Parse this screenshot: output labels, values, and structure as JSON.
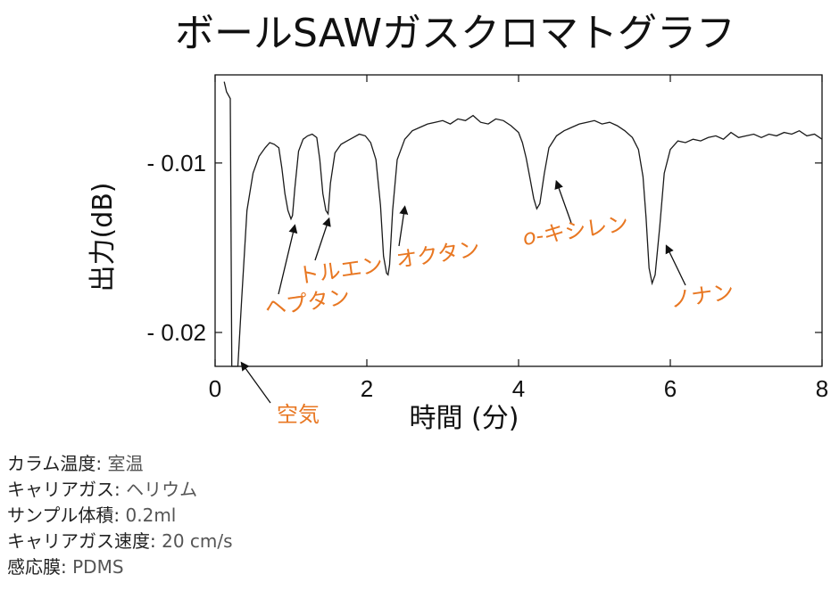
{
  "chart_data": {
    "type": "line",
    "title": "ボールSAWガスクロマトグラフ",
    "xlabel": "時間 (分)",
    "ylabel": "出力(dB)",
    "xlim": [
      0,
      8
    ],
    "ylim": [
      -0.022,
      -0.0048
    ],
    "xticks": [
      "0",
      "2",
      "4",
      "6",
      "8"
    ],
    "yticks": [
      {
        "value": -0.01,
        "label": "- 0.01"
      },
      {
        "value": -0.02,
        "label": "- 0.02"
      }
    ],
    "grid": false,
    "legend": "none",
    "line_color": "#1a1a1a",
    "annotation_color": "#e87722",
    "series": [
      {
        "x": [
          0.12,
          0.15,
          0.2,
          0.22,
          0.25,
          0.28,
          0.3,
          0.35,
          0.42,
          0.5,
          0.58,
          0.66,
          0.72,
          0.78,
          0.84,
          0.88,
          0.92,
          0.96,
          1.0,
          1.02,
          1.05,
          1.1,
          1.16,
          1.22,
          1.28,
          1.34,
          1.38,
          1.42,
          1.46,
          1.49,
          1.52,
          1.58,
          1.66,
          1.74,
          1.82,
          1.9,
          1.98,
          2.05,
          2.12,
          2.18,
          2.22,
          2.26,
          2.28,
          2.3,
          2.34,
          2.4,
          2.5,
          2.6,
          2.7,
          2.8,
          2.9,
          3.0,
          3.1,
          3.2,
          3.3,
          3.4,
          3.5,
          3.6,
          3.7,
          3.8,
          3.9,
          4.0,
          4.05,
          4.1,
          4.15,
          4.2,
          4.24,
          4.28,
          4.34,
          4.4,
          4.5,
          4.6,
          4.7,
          4.8,
          4.9,
          5.0,
          5.1,
          5.2,
          5.3,
          5.4,
          5.5,
          5.58,
          5.64,
          5.68,
          5.72,
          5.76,
          5.8,
          5.86,
          5.92,
          6.0,
          6.1,
          6.2,
          6.3,
          6.4,
          6.5,
          6.6,
          6.7,
          6.8,
          6.9,
          7.0,
          7.1,
          7.2,
          7.3,
          7.4,
          7.5,
          7.6,
          7.7,
          7.8,
          7.9,
          8.0
        ],
        "y": [
          -0.0052,
          -0.0058,
          -0.0062,
          -0.022,
          -0.022,
          -0.022,
          -0.022,
          -0.018,
          -0.0128,
          -0.0106,
          -0.0096,
          -0.0091,
          -0.0088,
          -0.0089,
          -0.0091,
          -0.0103,
          -0.0118,
          -0.0128,
          -0.0133,
          -0.0131,
          -0.0115,
          -0.0093,
          -0.0086,
          -0.0084,
          -0.0083,
          -0.0085,
          -0.0098,
          -0.0118,
          -0.0128,
          -0.013,
          -0.0112,
          -0.0094,
          -0.0089,
          -0.0087,
          -0.0085,
          -0.0083,
          -0.0084,
          -0.0088,
          -0.0098,
          -0.0125,
          -0.0155,
          -0.0165,
          -0.0166,
          -0.016,
          -0.0128,
          -0.0098,
          -0.0086,
          -0.0081,
          -0.0079,
          -0.0077,
          -0.0076,
          -0.0075,
          -0.0077,
          -0.0074,
          -0.0075,
          -0.0072,
          -0.0076,
          -0.0077,
          -0.0074,
          -0.0075,
          -0.0078,
          -0.0082,
          -0.0088,
          -0.0097,
          -0.0109,
          -0.0121,
          -0.0127,
          -0.0124,
          -0.0106,
          -0.0091,
          -0.0084,
          -0.0081,
          -0.0079,
          -0.0077,
          -0.0076,
          -0.0075,
          -0.0077,
          -0.0076,
          -0.0078,
          -0.0081,
          -0.0085,
          -0.0092,
          -0.0108,
          -0.0132,
          -0.0162,
          -0.0171,
          -0.0166,
          -0.0138,
          -0.0106,
          -0.0092,
          -0.0087,
          -0.0088,
          -0.0086,
          -0.0087,
          -0.0085,
          -0.0084,
          -0.0086,
          -0.0082,
          -0.0085,
          -0.0084,
          -0.0083,
          -0.0085,
          -0.0083,
          -0.0084,
          -0.0082,
          -0.0083,
          -0.0081,
          -0.0084,
          -0.0083,
          -0.0086
        ]
      }
    ],
    "annotations": [
      {
        "label": "空気",
        "tip_x": 0.35,
        "tip_y": -0.0218
      },
      {
        "label": "ヘプタン",
        "tip_x": 1.05,
        "tip_y": -0.0137
      },
      {
        "label": "トルエン",
        "tip_x": 1.5,
        "tip_y": -0.0133
      },
      {
        "label": "オクタン",
        "tip_x": 2.5,
        "tip_y": -0.0126
      },
      {
        "label": "o-キシレン",
        "tip_x": 4.5,
        "tip_y": -0.0111
      },
      {
        "label": "ノナン",
        "tip_x": 5.95,
        "tip_y": -0.0149
      }
    ]
  },
  "notes": [
    {
      "key": "カラム温度",
      "value": "室温"
    },
    {
      "key": "キャリアガス",
      "value": "ヘリウム"
    },
    {
      "key": "サンプル体積",
      "value": "0.2ml"
    },
    {
      "key": "キャリアガス速度",
      "value": "20 cm/s"
    },
    {
      "key": "感応膜",
      "value": "PDMS"
    }
  ]
}
